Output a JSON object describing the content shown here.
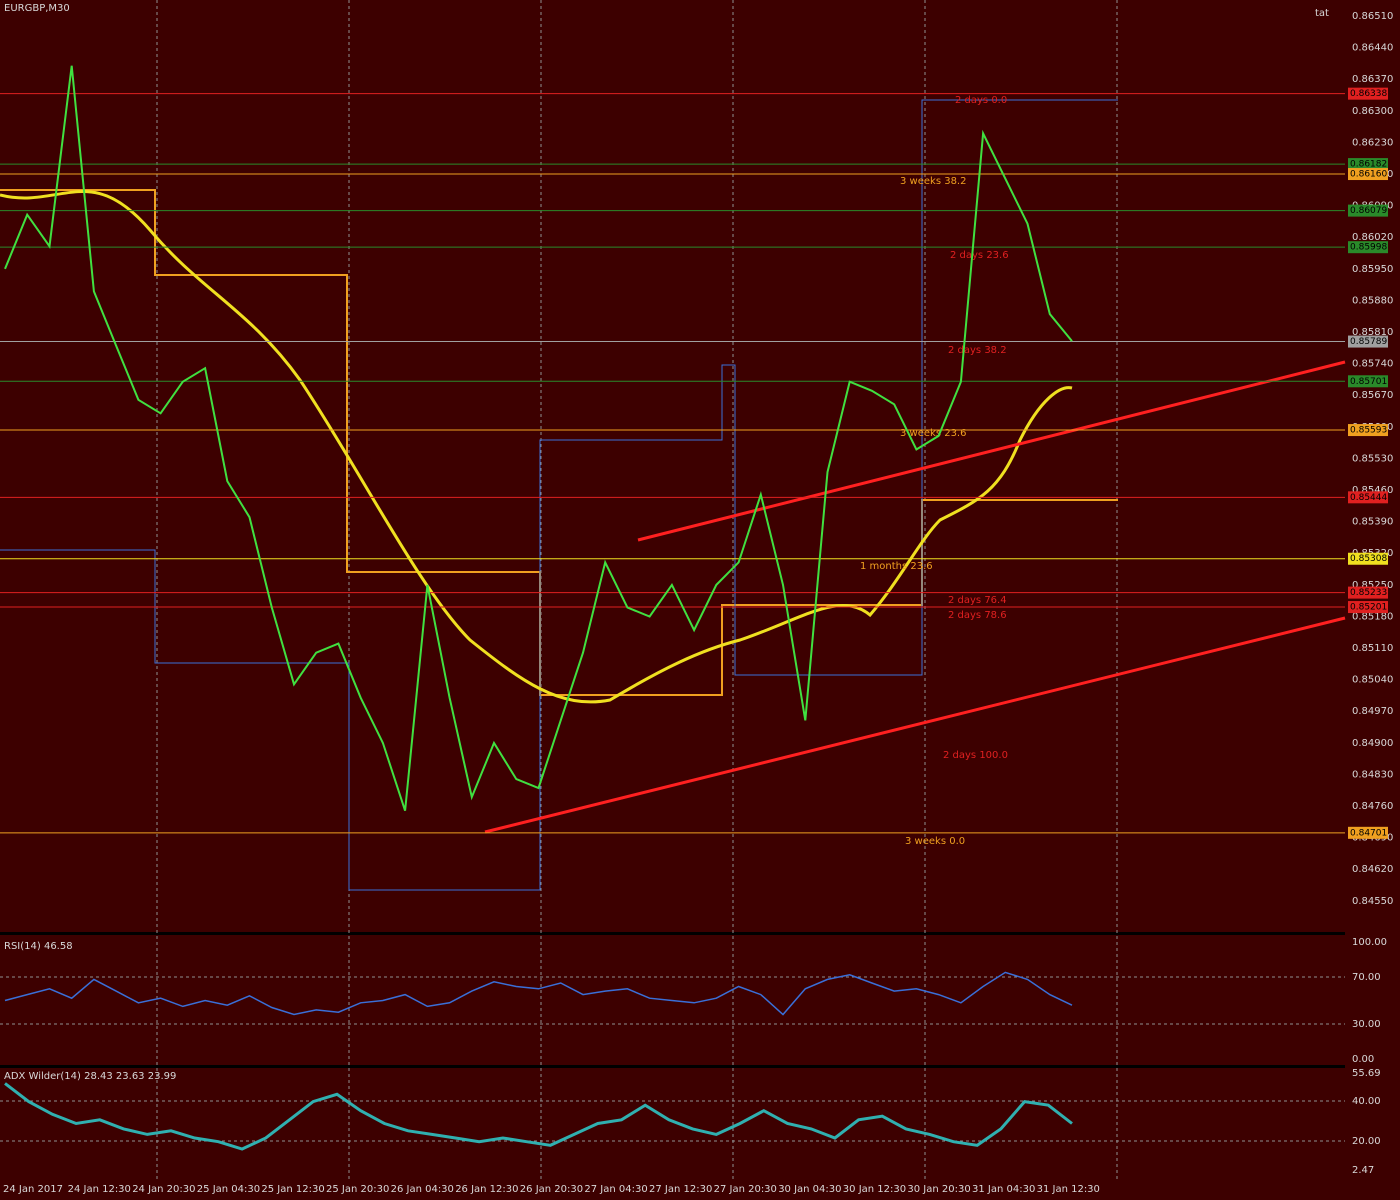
{
  "window": {
    "title": "EURGBP,M30",
    "user": "tat"
  },
  "price_axis": [
    "0.86510",
    "0.86440",
    "0.86370",
    "0.86300",
    "0.86230",
    "0.86160",
    "0.86090",
    "0.86020",
    "0.85950",
    "0.85880",
    "0.85810",
    "0.85740",
    "0.85670",
    "0.85600",
    "0.85530",
    "0.85460",
    "0.85390",
    "0.85320",
    "0.85250",
    "0.85180",
    "0.85110",
    "0.85040",
    "0.84970",
    "0.84900",
    "0.84830",
    "0.84760",
    "0.84690",
    "0.84620",
    "0.84550"
  ],
  "levels": [
    {
      "label": "0.86338",
      "color": "#e02020"
    },
    {
      "label": "0.86182",
      "color": "#2a8a2a"
    },
    {
      "label": "0.86160",
      "color": "#f0a020"
    },
    {
      "label": "0.86079",
      "color": "#2a8a2a"
    },
    {
      "label": "0.85998",
      "color": "#2a8a2a"
    },
    {
      "label": "0.85789",
      "color": "#a0a0a0"
    },
    {
      "label": "0.85701",
      "color": "#2a8a2a"
    },
    {
      "label": "0.85593",
      "color": "#f0a020"
    },
    {
      "label": "0.85444",
      "color": "#e02020"
    },
    {
      "label": "0.85308",
      "color": "#f0e020"
    },
    {
      "label": "0.85233",
      "color": "#e02020"
    },
    {
      "label": "0.85201",
      "color": "#e02020"
    },
    {
      "label": "0.84701",
      "color": "#f0a020"
    }
  ],
  "fib_labels": [
    "2 days 0.0",
    "3 weeks 38.2",
    "2 days 23.6",
    "2 days 38.2",
    "3 weeks 23.6",
    "1 months 23.6",
    "2 days 76.4",
    "2 days 78.6",
    "2 days 100.0",
    "3 weeks 0.0"
  ],
  "price": {
    "closes": [
      0.8595,
      0.8607,
      0.86,
      0.864,
      0.859,
      0.8578,
      0.8566,
      0.8563,
      0.857,
      0.8573,
      0.8548,
      0.854,
      0.852,
      0.8503,
      0.851,
      0.8512,
      0.85,
      0.849,
      0.8475,
      0.8525,
      0.85,
      0.8478,
      0.849,
      0.8482,
      0.848,
      0.8495,
      0.851,
      0.853,
      0.852,
      0.8518,
      0.8525,
      0.8515,
      0.8525,
      0.853,
      0.8545,
      0.8525,
      0.8495,
      0.855,
      0.857,
      0.8568,
      0.8565,
      0.8555,
      0.8558,
      0.857,
      0.8625,
      0.8615,
      0.8605,
      0.8585,
      0.8579
    ]
  },
  "rsi": {
    "title": "RSI(14) 46.58",
    "axis": [
      "100.00",
      "70.00",
      "30.00",
      "0.00"
    ],
    "values": [
      50,
      55,
      60,
      52,
      68,
      58,
      48,
      52,
      45,
      50,
      46,
      54,
      44,
      38,
      42,
      40,
      48,
      50,
      55,
      45,
      48,
      58,
      66,
      62,
      60,
      65,
      55,
      58,
      60,
      52,
      50,
      48,
      52,
      62,
      55,
      38,
      60,
      68,
      72,
      65,
      58,
      60,
      55,
      48,
      62,
      74,
      68,
      55,
      46
    ]
  },
  "adx": {
    "title": "ADX Wilder(14) 28.43 23.63 23.99",
    "axis": [
      "55.69",
      "40.00",
      "20.00",
      "2.47"
    ],
    "values": [
      50,
      40,
      33,
      28,
      30,
      25,
      22,
      24,
      20,
      18,
      14,
      20,
      30,
      40,
      44,
      35,
      28,
      24,
      22,
      20,
      18,
      20,
      18,
      16,
      22,
      28,
      30,
      38,
      30,
      25,
      22,
      28,
      35,
      28,
      25,
      20,
      30,
      32,
      25,
      22,
      18,
      16,
      25,
      40,
      38,
      28
    ]
  },
  "time_axis": [
    "24 Jan 2017",
    "24 Jan 12:30",
    "24 Jan 20:30",
    "25 Jan 04:30",
    "25 Jan 12:30",
    "25 Jan 20:30",
    "26 Jan 04:30",
    "26 Jan 12:30",
    "26 Jan 20:30",
    "27 Jan 04:30",
    "27 Jan 12:30",
    "27 Jan 20:30",
    "30 Jan 04:30",
    "30 Jan 12:30",
    "30 Jan 20:30",
    "31 Jan 04:30",
    "31 Jan 12:30"
  ]
}
